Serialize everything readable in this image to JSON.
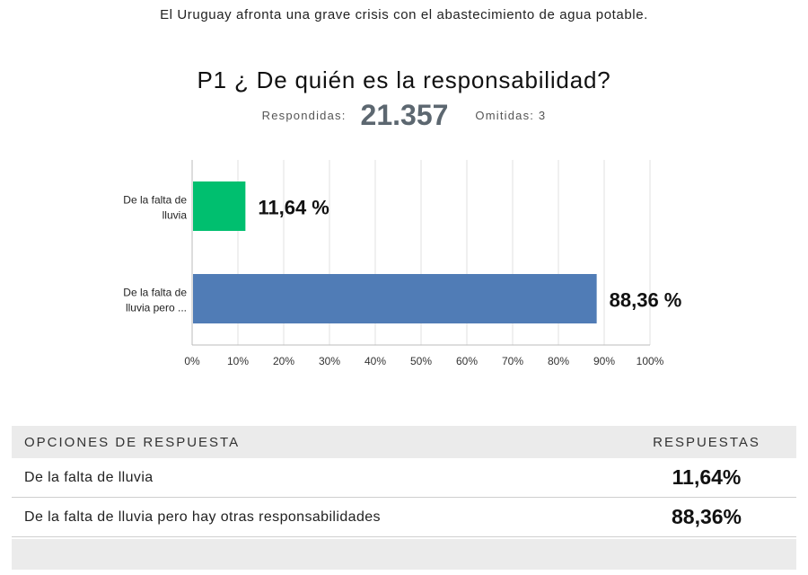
{
  "header": {
    "subtitle": "El Uruguay afronta una grave crisis con el abastecimiento de agua potable.",
    "question": "P1 ¿ De quién es la responsabilidad?",
    "answered_label": "Respondidas:",
    "answered_value": "21.357",
    "skipped_label": "Omitidas: 3"
  },
  "chart_data": {
    "type": "bar",
    "orientation": "horizontal",
    "categories": [
      "De la falta de lluvia",
      "De la falta de lluvia pero ..."
    ],
    "values": [
      11.64,
      88.36
    ],
    "value_labels": [
      "11,64 %",
      "88,36 %"
    ],
    "colors": [
      "#00bf6f",
      "#507cb6"
    ],
    "xlim": [
      0,
      100
    ],
    "xticks": [
      "0%",
      "10%",
      "20%",
      "30%",
      "40%",
      "50%",
      "60%",
      "70%",
      "80%",
      "90%",
      "100%"
    ],
    "grid": true
  },
  "table": {
    "col1_header": "OPCIONES DE RESPUESTA",
    "col2_header": "RESPUESTAS",
    "rows": [
      {
        "option": "De la falta de lluvia",
        "value": "11,64%"
      },
      {
        "option": "De la falta de lluvia pero hay otras responsabilidades",
        "value": "88,36%"
      }
    ]
  }
}
